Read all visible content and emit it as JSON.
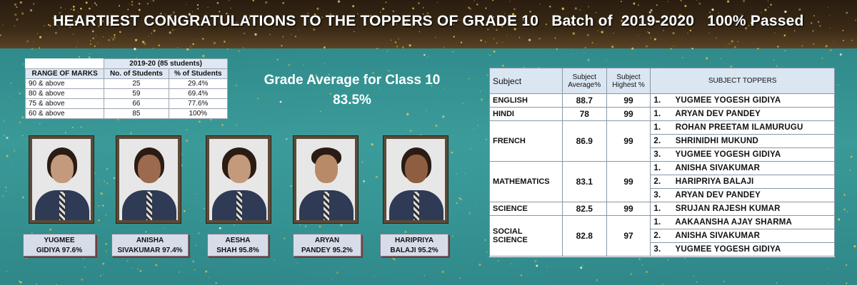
{
  "headline": "HEARTIEST CONGRATULATIONS TO THE TOPPERS OF GRADE 10   Batch of  2019-2020   100% Passed",
  "marks_table": {
    "year_header": "2019-20 (85 students)",
    "columns": [
      "RANGE OF MARKS",
      "No. of Students",
      "% of Students"
    ],
    "rows": [
      [
        "90 & above",
        "25",
        "29.4%"
      ],
      [
        "80 & above",
        "59",
        "69.4%"
      ],
      [
        "75 & above",
        "66",
        "77.6%"
      ],
      [
        "60 & above",
        "85",
        "100%"
      ]
    ]
  },
  "grade_average": {
    "label": "Grade Average for Class 10",
    "value": "83.5%"
  },
  "toppers": [
    {
      "line1": "YUGMEE",
      "line2": "GIDIYA 97.6%"
    },
    {
      "line1": "ANISHA",
      "line2": "SIVAKUMAR 97.4%"
    },
    {
      "line1": "AESHA",
      "line2": "SHAH   95.8%"
    },
    {
      "line1": "ARYAN",
      "line2": "PANDEY  95.2%"
    },
    {
      "line1": "HARIPRIYA",
      "line2": "BALAJI  95.2%"
    }
  ],
  "subject_table": {
    "headers": {
      "subject": "Subject",
      "avg1": "Subject",
      "avg2": "Average%",
      "high1": "Subject",
      "high2": "Highest %",
      "toppers": "SUBJECT TOPPERS"
    },
    "rows": [
      {
        "subject": "ENGLISH",
        "avg": "88.7",
        "high": "99",
        "toppers": [
          "1.      YUGMEE YOGESH GIDIYA"
        ]
      },
      {
        "subject": "HINDI",
        "avg": "78",
        "high": "99",
        "toppers": [
          "1.      ARYAN DEV PANDEY"
        ]
      },
      {
        "subject": "FRENCH",
        "avg": "86.9",
        "high": "99",
        "toppers": [
          "1.      ROHAN PREETAM ILAMURUGU",
          "2.      SHRINIDHI MUKUND",
          "3.      YUGMEE YOGESH GIDIYA"
        ]
      },
      {
        "subject": "MATHEMATICS",
        "avg": "83.1",
        "high": "99",
        "toppers": [
          "1.      ANISHA SIVAKUMAR",
          "2.      HARIPRIYA BALAJI",
          "3.      ARYAN DEV PANDEY"
        ]
      },
      {
        "subject": "SCIENCE",
        "avg": "82.5",
        "high": "99",
        "toppers": [
          "1.      SRUJAN RAJESH KUMAR"
        ]
      },
      {
        "subject": "SOCIAL SCIENCE",
        "avg": "82.8",
        "high": "97",
        "toppers": [
          "1.      AAKAANSHA AJAY SHARMA",
          "2.      ANISHA SIVAKUMAR",
          "3.      YUGMEE YOGESH GIDIYA"
        ]
      }
    ]
  },
  "colors": {
    "background": "#2f8a8b",
    "header_band": "#3a2a16",
    "sparkle": "#e8c24a",
    "table_header": "#dbe6f3"
  }
}
